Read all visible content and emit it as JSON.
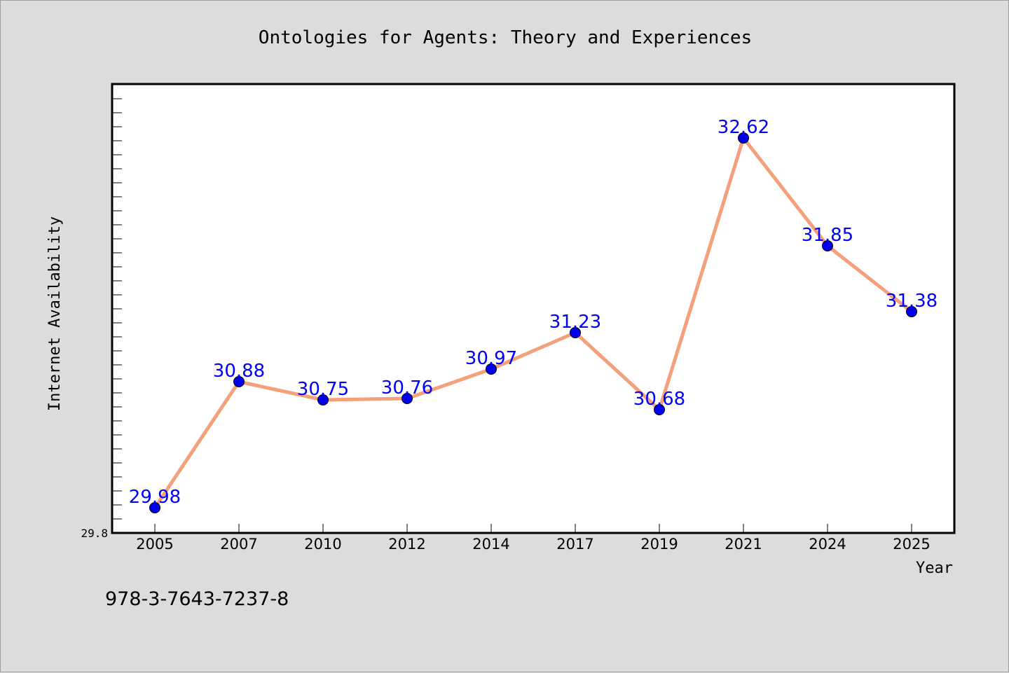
{
  "chart_data": {
    "type": "line",
    "title": "Ontologies for Agents: Theory and Experiences",
    "xlabel": "Year",
    "ylabel": "Internet Availability",
    "categories": [
      "2005",
      "2007",
      "2010",
      "2012",
      "2014",
      "2017",
      "2019",
      "2021",
      "2024",
      "2025"
    ],
    "series": [
      {
        "values": [
          29.98,
          30.88,
          30.75,
          30.76,
          30.97,
          31.23,
          30.68,
          32.62,
          31.85,
          31.38
        ],
        "labels": [
          "29.98",
          "30.88",
          "30.75",
          "30.76",
          "30.97",
          "31.23",
          "30.68",
          "32.62",
          "31.85",
          "31.38"
        ]
      }
    ],
    "ylim": [
      29.8,
      33.0
    ],
    "yticks_labeled": [
      "29.8"
    ],
    "grid": false,
    "line_color": "#f4a07a",
    "marker_color": "#0000ee",
    "label_color": "#0000ff"
  },
  "footer": {
    "isbn": "978-3-7643-7237-8"
  }
}
